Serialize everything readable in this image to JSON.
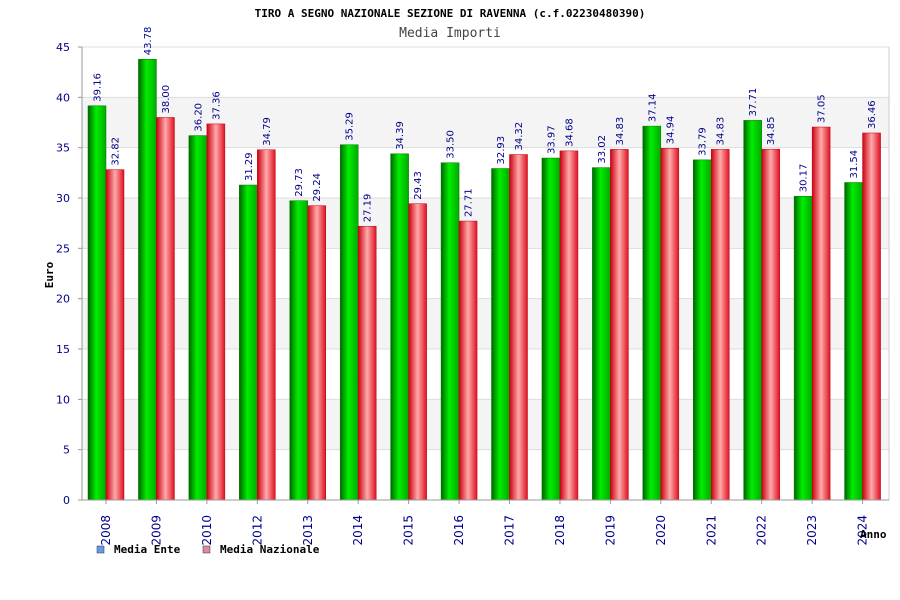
{
  "chart_data": {
    "type": "bar",
    "title": "TIRO A SEGNO NAZIONALE SEZIONE DI RAVENNA (c.f.02230480390)",
    "subtitle": "Media Importi",
    "xlabel": "Anno",
    "ylabel": "Euro",
    "ylim": [
      0,
      45
    ],
    "yticks": [
      0,
      5,
      10,
      15,
      20,
      25,
      30,
      35,
      40,
      45
    ],
    "grid": true,
    "legend_position": "bottom-left",
    "categories": [
      "2008",
      "2009",
      "2010",
      "2012",
      "2013",
      "2014",
      "2015",
      "2016",
      "2017",
      "2018",
      "2019",
      "2020",
      "2021",
      "2022",
      "2023",
      "2024"
    ],
    "series": [
      {
        "name": "Media Ente",
        "color": "#00cc00",
        "legend_color": "#6699ee",
        "values": [
          39.16,
          43.78,
          36.2,
          31.29,
          29.73,
          35.29,
          34.39,
          33.5,
          32.93,
          33.97,
          33.02,
          37.14,
          33.79,
          37.71,
          30.17,
          31.54
        ],
        "labels": [
          "39.16",
          "43.78",
          "36.20",
          "31.29",
          "29.73",
          "35.29",
          "34.39",
          "33.50",
          "32.93",
          "33.97",
          "33.02",
          "37.14",
          "33.79",
          "37.71",
          "30.17",
          "31.54"
        ]
      },
      {
        "name": "Media Nazionale",
        "color": "#ee2233",
        "legend_color": "#dd88aa",
        "values": [
          32.82,
          38.0,
          37.36,
          34.79,
          29.24,
          27.19,
          29.43,
          27.71,
          34.32,
          34.68,
          34.83,
          34.94,
          34.83,
          34.85,
          37.05,
          36.46
        ],
        "labels": [
          "32.82",
          "38.00",
          "37.36",
          "34.79",
          "29.24",
          "27.19",
          "29.43",
          "27.71",
          "34.32",
          "34.68",
          "34.83",
          "34.94",
          "34.83",
          "34.85",
          "37.05",
          "36.46"
        ]
      }
    ]
  }
}
